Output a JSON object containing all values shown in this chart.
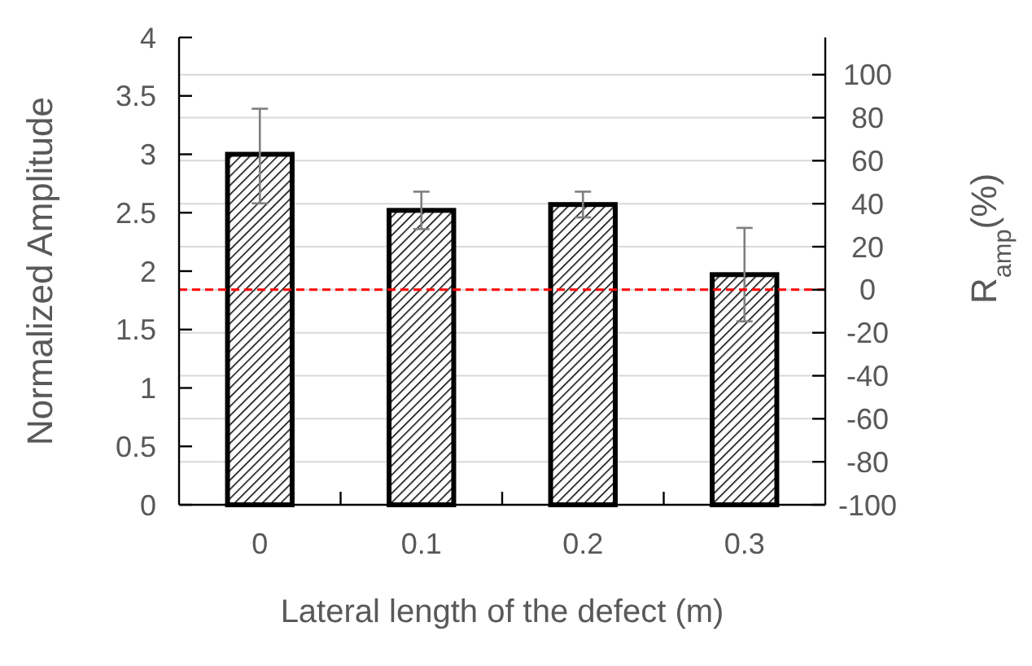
{
  "chart_data": {
    "type": "bar",
    "categories": [
      "0",
      "0.1",
      "0.2",
      "0.3"
    ],
    "values": [
      3.0,
      2.52,
      2.57,
      1.97
    ],
    "errors": [
      [
        2.58,
        3.39
      ],
      [
        2.36,
        2.68
      ],
      [
        2.46,
        2.68
      ],
      [
        1.57,
        2.37
      ]
    ],
    "color": "#000000",
    "xlabel": "Lateral length of the defect (m)",
    "ylabel": "Normalized Amplitude",
    "y2label": "R$_{amp}$(%)",
    "ylim": [
      0,
      4
    ],
    "yticks": [
      0,
      0.5,
      1,
      1.5,
      2,
      2.5,
      3,
      3.5,
      4
    ],
    "y2lim": [
      -100,
      117.3
    ],
    "y2ticks": [
      -100,
      -80,
      -60,
      -40,
      -20,
      0,
      20,
      40,
      60,
      80,
      100
    ],
    "grid": true,
    "ref_lines": [
      {
        "axis": "y2",
        "value": 0,
        "color": "#ff0000",
        "line_style": "dashed"
      }
    ]
  }
}
